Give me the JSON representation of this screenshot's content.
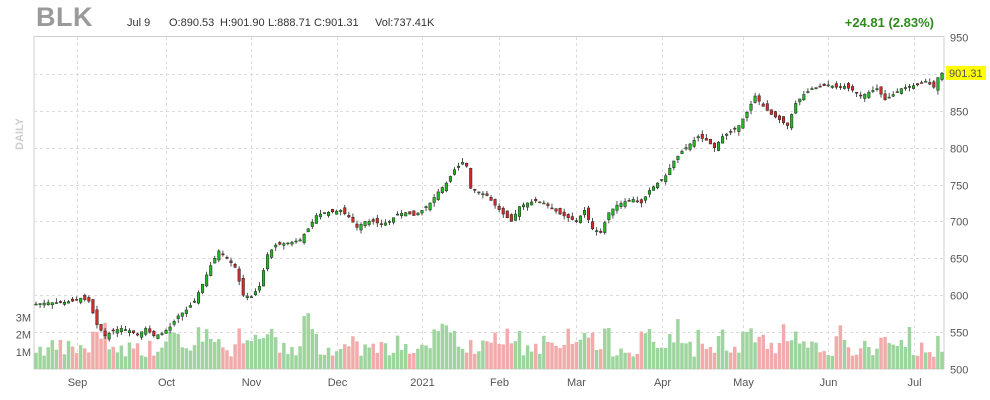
{
  "header": {
    "ticker": "BLK",
    "date": "Jul 9",
    "open": "O:890.53",
    "high": "H:901.90",
    "low": "L:888.71",
    "close": "C:901.31",
    "volume": "Vol:737.41K",
    "change": "+24.81 (2.83%)",
    "period": "DAILY"
  },
  "colors": {
    "up": "#22b822",
    "down": "#d42a2a",
    "vol_up": "#9ed49e",
    "vol_down": "#f2aaaa",
    "change": "#2e8b1e",
    "price_tag_bg": "#ffff00"
  },
  "chart_data": {
    "type": "candlestick",
    "ylim": [
      500,
      950
    ],
    "yticks": [
      500,
      550,
      600,
      650,
      700,
      750,
      800,
      850,
      900,
      950
    ],
    "volume_ticks": [
      "1M",
      "2M",
      "3M"
    ],
    "volume_tick_values": [
      1,
      2,
      3
    ],
    "volume_max": 4,
    "x_labels": [
      "Sep",
      "Oct",
      "Nov",
      "Dec",
      "2021",
      "Feb",
      "Mar",
      "Apr",
      "May",
      "Jun",
      "Jul"
    ],
    "x_label_index": [
      10,
      32,
      53,
      74,
      95,
      114,
      133,
      154,
      174,
      195,
      216
    ],
    "last_price": "901.31",
    "last_price_value": 901.31,
    "close_anchors": [
      [
        0,
        588
      ],
      [
        3,
        590
      ],
      [
        6,
        590
      ],
      [
        9,
        592
      ],
      [
        11,
        596
      ],
      [
        13,
        592
      ],
      [
        15,
        560
      ],
      [
        17,
        545
      ],
      [
        19,
        552
      ],
      [
        21,
        555
      ],
      [
        23,
        552
      ],
      [
        25,
        546
      ],
      [
        27,
        555
      ],
      [
        29,
        545
      ],
      [
        31,
        548
      ],
      [
        33,
        557
      ],
      [
        35,
        572
      ],
      [
        37,
        580
      ],
      [
        39,
        592
      ],
      [
        41,
        615
      ],
      [
        43,
        640
      ],
      [
        45,
        660
      ],
      [
        47,
        650
      ],
      [
        49,
        638
      ],
      [
        51,
        600
      ],
      [
        53,
        598
      ],
      [
        55,
        612
      ],
      [
        57,
        655
      ],
      [
        59,
        668
      ],
      [
        61,
        670
      ],
      [
        63,
        672
      ],
      [
        65,
        675
      ],
      [
        67,
        690
      ],
      [
        69,
        708
      ],
      [
        71,
        712
      ],
      [
        73,
        713
      ],
      [
        75,
        715
      ],
      [
        77,
        706
      ],
      [
        79,
        692
      ],
      [
        81,
        700
      ],
      [
        83,
        700
      ],
      [
        85,
        696
      ],
      [
        87,
        700
      ],
      [
        89,
        710
      ],
      [
        91,
        712
      ],
      [
        93,
        708
      ],
      [
        95,
        715
      ],
      [
        97,
        725
      ],
      [
        99,
        740
      ],
      [
        101,
        752
      ],
      [
        103,
        770
      ],
      [
        105,
        780
      ],
      [
        106,
        775
      ],
      [
        107,
        745
      ],
      [
        109,
        740
      ],
      [
        111,
        735
      ],
      [
        113,
        722
      ],
      [
        115,
        710
      ],
      [
        117,
        700
      ],
      [
        119,
        720
      ],
      [
        121,
        725
      ],
      [
        123,
        728
      ],
      [
        125,
        725
      ],
      [
        127,
        718
      ],
      [
        129,
        710
      ],
      [
        131,
        705
      ],
      [
        133,
        700
      ],
      [
        135,
        715
      ],
      [
        137,
        690
      ],
      [
        139,
        685
      ],
      [
        141,
        712
      ],
      [
        143,
        722
      ],
      [
        145,
        727
      ],
      [
        147,
        730
      ],
      [
        149,
        725
      ],
      [
        151,
        742
      ],
      [
        153,
        752
      ],
      [
        155,
        762
      ],
      [
        157,
        782
      ],
      [
        159,
        795
      ],
      [
        161,
        805
      ],
      [
        163,
        815
      ],
      [
        165,
        810
      ],
      [
        167,
        800
      ],
      [
        169,
        815
      ],
      [
        171,
        822
      ],
      [
        173,
        830
      ],
      [
        175,
        848
      ],
      [
        177,
        870
      ],
      [
        179,
        856
      ],
      [
        181,
        845
      ],
      [
        183,
        838
      ],
      [
        185,
        830
      ],
      [
        187,
        860
      ],
      [
        189,
        872
      ],
      [
        191,
        880
      ],
      [
        193,
        883
      ],
      [
        195,
        885
      ],
      [
        197,
        882
      ],
      [
        199,
        883
      ],
      [
        201,
        878
      ],
      [
        203,
        870
      ],
      [
        205,
        875
      ],
      [
        207,
        880
      ],
      [
        209,
        865
      ],
      [
        211,
        872
      ],
      [
        213,
        880
      ],
      [
        215,
        883
      ],
      [
        217,
        885
      ],
      [
        219,
        890
      ],
      [
        221,
        882
      ],
      [
        222,
        895
      ],
      [
        223,
        901
      ]
    ],
    "count": 224
  }
}
